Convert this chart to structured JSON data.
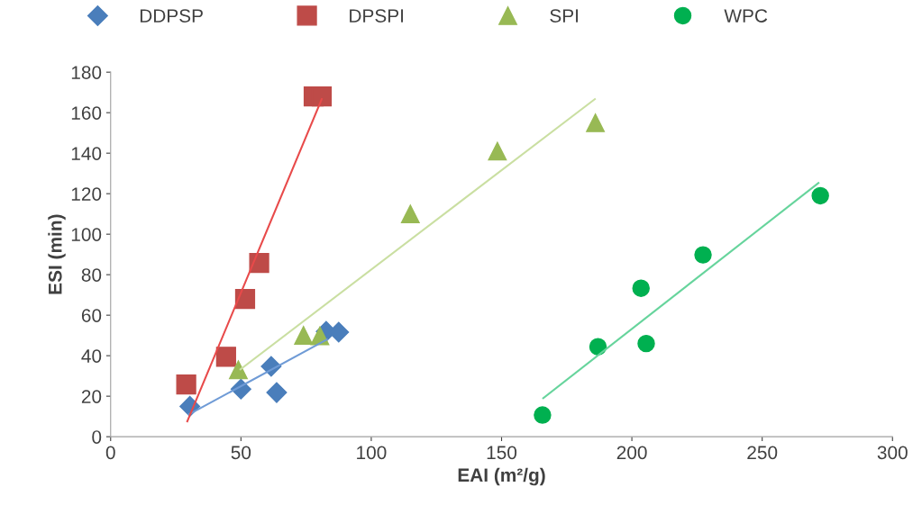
{
  "chart_data": {
    "type": "scatter",
    "xlabel": "EAI (m²/g)",
    "ylabel": "ESI (min)",
    "xlim": [
      0,
      300
    ],
    "ylim": [
      0,
      180
    ],
    "xticks": [
      0,
      50,
      100,
      150,
      200,
      250,
      300
    ],
    "yticks": [
      0,
      20,
      40,
      60,
      80,
      100,
      120,
      140,
      160,
      180
    ],
    "grid": false,
    "legend": "top",
    "series": [
      {
        "name": "DDPSP",
        "color": "#4a7ebb",
        "marker": "diamond",
        "x": [
          30.4,
          50,
          61.6,
          63.7,
          82.7,
          87.5
        ],
        "values": [
          15,
          23.5,
          34.7,
          21.8,
          52,
          51.6
        ]
      },
      {
        "name": "DPSPI",
        "color": "#be4b48",
        "marker": "square",
        "x": [
          29,
          44.3,
          51.6,
          57,
          77.9,
          81
        ],
        "values": [
          25.8,
          39.5,
          68,
          85.8,
          168,
          168
        ]
      },
      {
        "name": "SPI",
        "color": "#98b954",
        "marker": "triangle",
        "x": [
          49,
          74,
          80.3,
          115,
          148.4,
          186
        ],
        "values": [
          33,
          50,
          49.8,
          110,
          141,
          155
        ]
      },
      {
        "name": "WPC",
        "color": "#00b050",
        "marker": "circle",
        "x": [
          165.7,
          187,
          205.5,
          203.5,
          227.3,
          272.3
        ],
        "values": [
          10.7,
          44.4,
          46,
          73.3,
          89.8,
          119
        ]
      },
      {
        "type": "line",
        "color": "#6f9bd6",
        "marker": "none",
        "x": [
          30,
          83
        ],
        "values": [
          11,
          48
        ]
      },
      {
        "type": "line",
        "color": "#e84a4a",
        "marker": "none",
        "x": [
          29.4,
          81
        ],
        "values": [
          7.6,
          166.7
        ]
      },
      {
        "type": "line",
        "color": "#cadfa2",
        "marker": "none",
        "x": [
          49.8,
          185.8
        ],
        "values": [
          33.3,
          166.7
        ]
      },
      {
        "type": "line",
        "color": "#66d49c",
        "marker": "none",
        "x": [
          166,
          271.6
        ],
        "values": [
          19,
          125.3
        ]
      }
    ]
  }
}
